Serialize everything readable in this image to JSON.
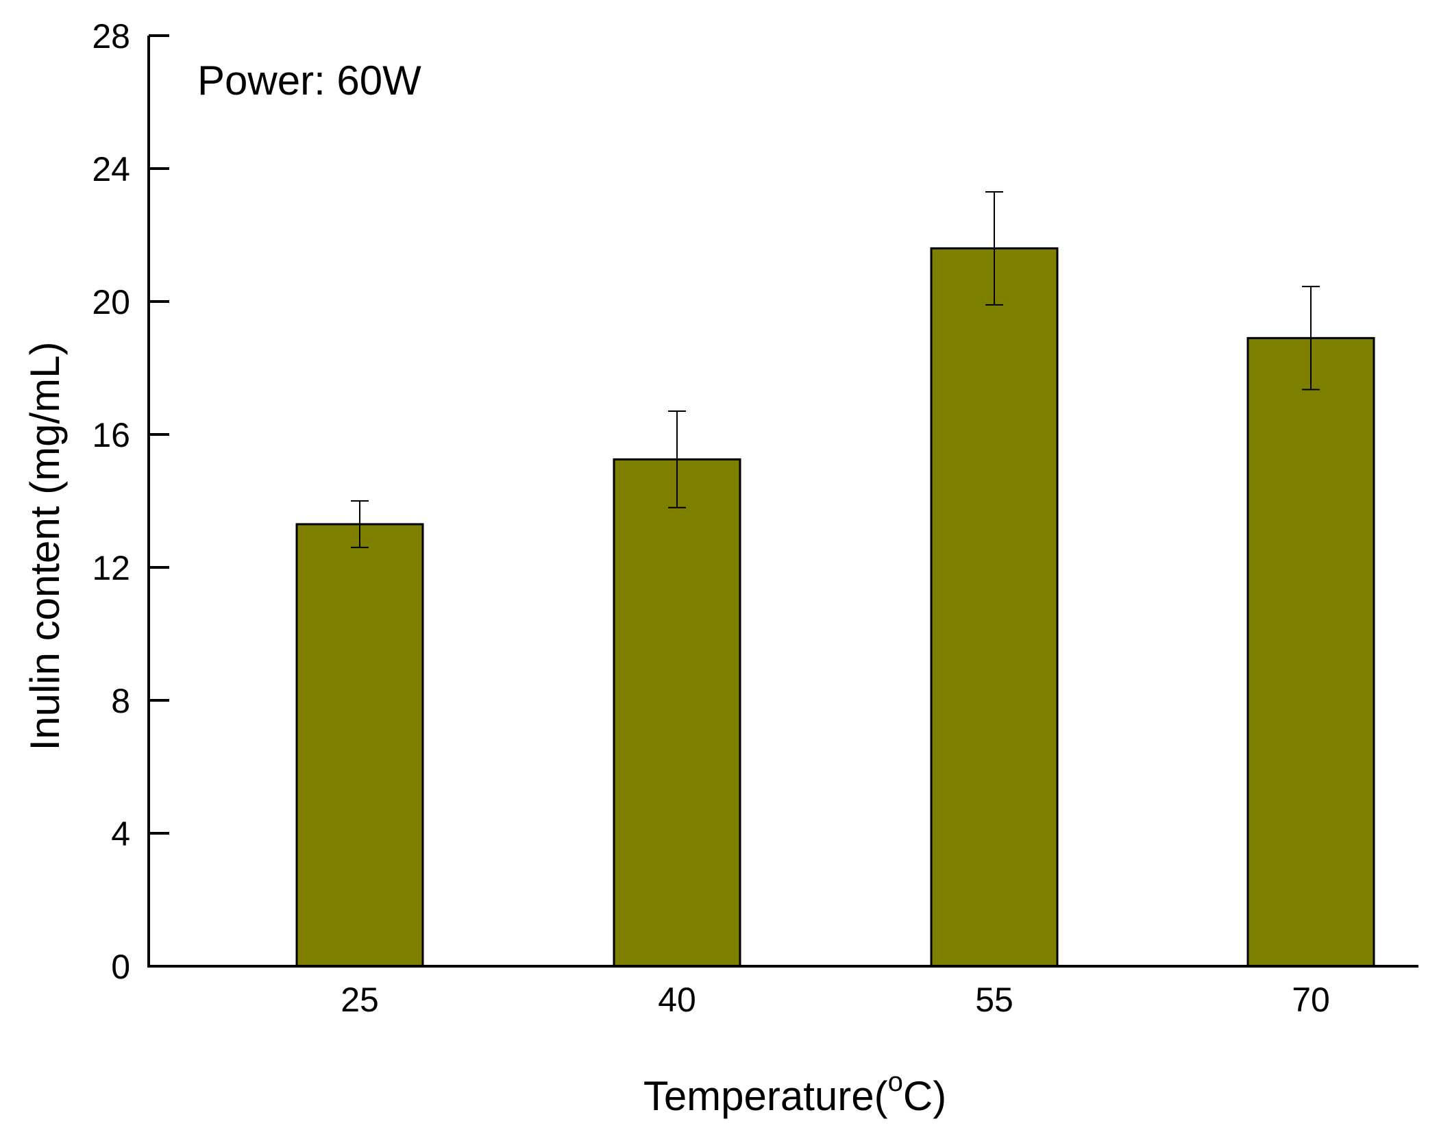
{
  "chart_data": {
    "type": "bar",
    "title": "",
    "annotation": "Power: 60W",
    "xlabel_main": "Temperature(",
    "xlabel_sup": "o",
    "xlabel_end": "C)",
    "ylabel": "Inulin content (mg/mL)",
    "categories": [
      "25",
      "40",
      "55",
      "70"
    ],
    "values": [
      13.3,
      15.25,
      21.6,
      18.9
    ],
    "errors": [
      0.7,
      1.45,
      1.7,
      1.55
    ],
    "ylim": [
      0,
      28
    ],
    "yticks": [
      "0",
      "4",
      "8",
      "12",
      "16",
      "20",
      "24",
      "28"
    ],
    "bar_color": "#808000",
    "legend": "none",
    "grid": false
  }
}
